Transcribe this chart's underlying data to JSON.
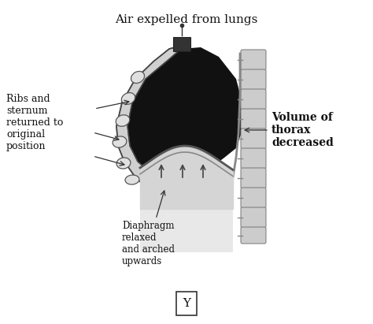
{
  "title": "Air expelled from lungs",
  "label_left_top": "Ribs and\nsternum\nreturned to\noriginal\nposition",
  "label_right": "Volume of\nthorax\ndecreased",
  "label_diaphragm": "Diaphragm\nrelaxed\nand arched\nupwards",
  "label_box": "Y",
  "bg_color": "#ffffff",
  "fig_width": 4.74,
  "fig_height": 4.11,
  "dpi": 100
}
